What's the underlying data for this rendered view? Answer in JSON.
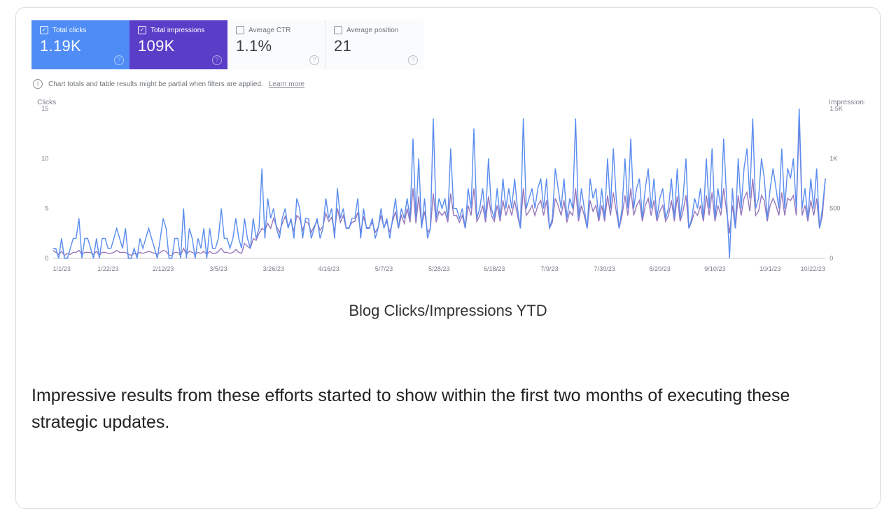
{
  "metrics": [
    {
      "key": "clicks",
      "label": "Total clicks",
      "value": "1.19K",
      "checked": true,
      "style": "active-blue"
    },
    {
      "key": "impressions",
      "label": "Total impressions",
      "value": "109K",
      "checked": true,
      "style": "active-purple"
    },
    {
      "key": "ctr",
      "label": "Average CTR",
      "value": "1.1%",
      "checked": false,
      "style": "inactive"
    },
    {
      "key": "position",
      "label": "Average position",
      "value": "21",
      "checked": false,
      "style": "inactive"
    }
  ],
  "info": {
    "text": "Chart totals and table results might be partial when filters are applied.",
    "link_label": "Learn more"
  },
  "chart": {
    "type": "line",
    "left_axis": {
      "title": "Clicks",
      "min": 0,
      "max": 15,
      "ticks": [
        0,
        5,
        10,
        15
      ]
    },
    "right_axis": {
      "title": "Impressions",
      "min": 0,
      "max": 1500,
      "ticks": [
        0,
        500,
        1000,
        1500
      ],
      "tick_labels": [
        "0",
        "500",
        "1K",
        "1.5K"
      ]
    },
    "x_ticks": [
      "1/1/23",
      "1/22/23",
      "2/12/23",
      "3/5/23",
      "3/26/23",
      "4/16/23",
      "5/7/23",
      "5/28/23",
      "6/18/23",
      "7/9/23",
      "7/30/23",
      "8/20/23",
      "9/10/23",
      "10/1/23",
      "10/22/23"
    ],
    "colors": {
      "clicks": "#5b8def",
      "impressions": "#6b3fa0",
      "grid": "#e8eaed",
      "baseline": "#c6cad0",
      "label": "#7c808a",
      "background": "#ffffff"
    },
    "line_width": 1.4,
    "series": {
      "clicks": [
        1,
        1,
        0,
        2,
        0,
        0,
        1,
        2,
        2,
        4,
        0,
        2,
        2,
        1,
        0,
        2,
        0,
        2,
        2,
        1,
        1,
        2,
        3,
        2,
        1,
        3,
        0,
        0,
        1,
        0,
        2,
        1,
        2,
        3,
        2,
        1,
        0,
        2,
        4,
        3,
        0,
        0,
        2,
        2,
        0,
        5,
        0,
        3,
        2,
        0,
        2,
        1,
        3,
        0,
        3,
        1,
        1,
        2,
        5,
        2,
        2,
        1,
        2,
        4,
        2,
        1,
        4,
        2,
        1,
        4,
        2,
        3,
        9,
        2,
        6,
        4,
        5,
        3,
        2,
        4,
        5,
        3,
        4,
        2,
        6,
        5,
        2,
        4,
        4,
        2,
        3,
        4,
        2,
        3,
        6,
        4,
        5,
        2,
        7,
        4,
        5,
        3,
        3,
        4,
        4,
        6,
        2,
        5,
        3,
        3,
        4,
        2,
        3,
        5,
        3,
        4,
        2,
        4,
        6,
        3,
        5,
        4,
        6,
        4,
        12,
        4,
        10,
        3,
        6,
        2,
        3,
        14,
        4,
        6,
        5,
        6,
        4,
        11,
        5,
        5,
        4,
        5,
        3,
        7,
        5,
        13,
        4,
        5,
        7,
        4,
        10,
        5,
        4,
        7,
        4,
        8,
        5,
        7,
        5,
        8,
        5,
        3,
        14,
        5,
        6,
        7,
        5,
        7,
        8,
        5,
        8,
        3,
        4,
        9,
        7,
        5,
        8,
        4,
        6,
        5,
        14,
        4,
        7,
        5,
        3,
        8,
        6,
        7,
        4,
        7,
        4,
        10,
        5,
        11,
        6,
        3,
        5,
        10,
        5,
        12,
        5,
        7,
        8,
        4,
        7,
        9,
        5,
        8,
        4,
        6,
        7,
        4,
        5,
        8,
        4,
        9,
        4,
        6,
        10,
        3,
        4,
        6,
        5,
        7,
        4,
        10,
        5,
        11,
        4,
        7,
        5,
        12,
        6,
        0,
        7,
        3,
        10,
        5,
        9,
        11,
        6,
        14,
        5,
        6,
        10,
        8,
        4,
        7,
        9,
        7,
        5,
        11,
        5,
        9,
        8,
        10,
        5,
        15,
        5,
        7,
        4,
        8,
        5,
        9,
        3,
        5,
        8
      ],
      "impressions": [
        80,
        60,
        40,
        70,
        30,
        50,
        40,
        60,
        60,
        80,
        40,
        60,
        60,
        60,
        40,
        70,
        30,
        60,
        60,
        50,
        50,
        60,
        80,
        60,
        60,
        60,
        40,
        30,
        50,
        40,
        60,
        50,
        60,
        70,
        60,
        50,
        40,
        60,
        80,
        70,
        30,
        30,
        60,
        60,
        30,
        100,
        40,
        70,
        60,
        40,
        60,
        50,
        70,
        40,
        70,
        50,
        50,
        70,
        100,
        60,
        60,
        50,
        60,
        90,
        60,
        50,
        150,
        120,
        100,
        200,
        180,
        250,
        300,
        280,
        350,
        300,
        400,
        320,
        260,
        350,
        420,
        320,
        380,
        270,
        430,
        400,
        280,
        370,
        350,
        260,
        320,
        370,
        280,
        320,
        450,
        370,
        410,
        270,
        500,
        360,
        430,
        300,
        310,
        360,
        370,
        460,
        260,
        420,
        310,
        310,
        360,
        260,
        310,
        430,
        310,
        370,
        260,
        370,
        470,
        300,
        430,
        350,
        500,
        360,
        700,
        350,
        620,
        320,
        470,
        260,
        300,
        650,
        360,
        470,
        430,
        470,
        360,
        650,
        430,
        430,
        360,
        430,
        300,
        530,
        430,
        700,
        370,
        430,
        530,
        360,
        620,
        430,
        370,
        530,
        370,
        580,
        430,
        530,
        430,
        580,
        430,
        300,
        700,
        430,
        470,
        530,
        430,
        530,
        580,
        430,
        580,
        300,
        360,
        600,
        530,
        430,
        580,
        360,
        470,
        430,
        700,
        370,
        530,
        430,
        300,
        580,
        470,
        530,
        370,
        530,
        370,
        630,
        430,
        660,
        470,
        300,
        430,
        630,
        430,
        700,
        430,
        530,
        580,
        370,
        530,
        600,
        430,
        580,
        370,
        470,
        530,
        370,
        430,
        580,
        370,
        620,
        370,
        470,
        630,
        300,
        370,
        470,
        430,
        530,
        370,
        630,
        430,
        660,
        370,
        530,
        430,
        700,
        470,
        250,
        530,
        300,
        630,
        430,
        600,
        660,
        470,
        800,
        430,
        470,
        630,
        580,
        370,
        530,
        600,
        530,
        430,
        660,
        430,
        600,
        580,
        630,
        430,
        1400,
        430,
        530,
        370,
        580,
        430,
        600,
        300,
        430,
        800
      ]
    }
  },
  "caption": "Blog Clicks/Impressions YTD",
  "body_text": "Impressive results from these efforts started to show within the first two months of executing these strategic updates."
}
